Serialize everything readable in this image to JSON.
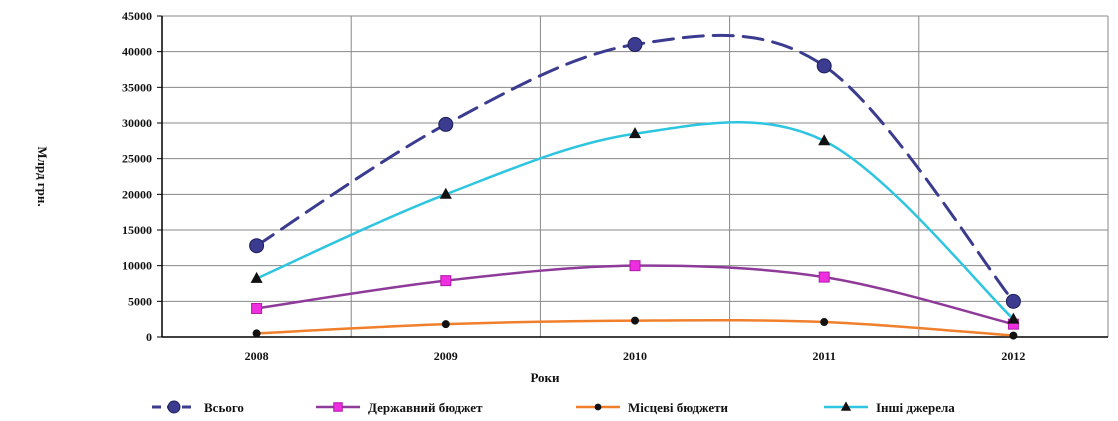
{
  "chart_data": {
    "type": "line",
    "title": "",
    "xlabel": "Роки",
    "ylabel": "Млрд грн.",
    "categories": [
      "2008",
      "2009",
      "2010",
      "2011",
      "2012"
    ],
    "ylim": [
      0,
      45000
    ],
    "yticks": [
      0,
      5000,
      10000,
      15000,
      20000,
      25000,
      30000,
      35000,
      40000,
      45000
    ],
    "grid": true,
    "smooth": true,
    "legend_position": "bottom",
    "series": [
      {
        "name": "Всього",
        "values": [
          12800,
          29800,
          41000,
          38000,
          5000
        ],
        "color": "#3b3b8f",
        "marker": "circle",
        "dash": "dashed"
      },
      {
        "name": "Державний бюджет",
        "values": [
          4000,
          7900,
          10000,
          8400,
          1800
        ],
        "color": "#8e3a99",
        "marker": "square",
        "dash": "solid"
      },
      {
        "name": "Місцеві бюджети",
        "values": [
          500,
          1800,
          2300,
          2100,
          200
        ],
        "color": "#f07f2c",
        "marker": "dot",
        "dash": "solid"
      },
      {
        "name": "Інші джерела",
        "values": [
          8200,
          20000,
          28500,
          27500,
          2500
        ],
        "color": "#2ec5e0",
        "marker": "triangle",
        "dash": "solid"
      }
    ]
  }
}
